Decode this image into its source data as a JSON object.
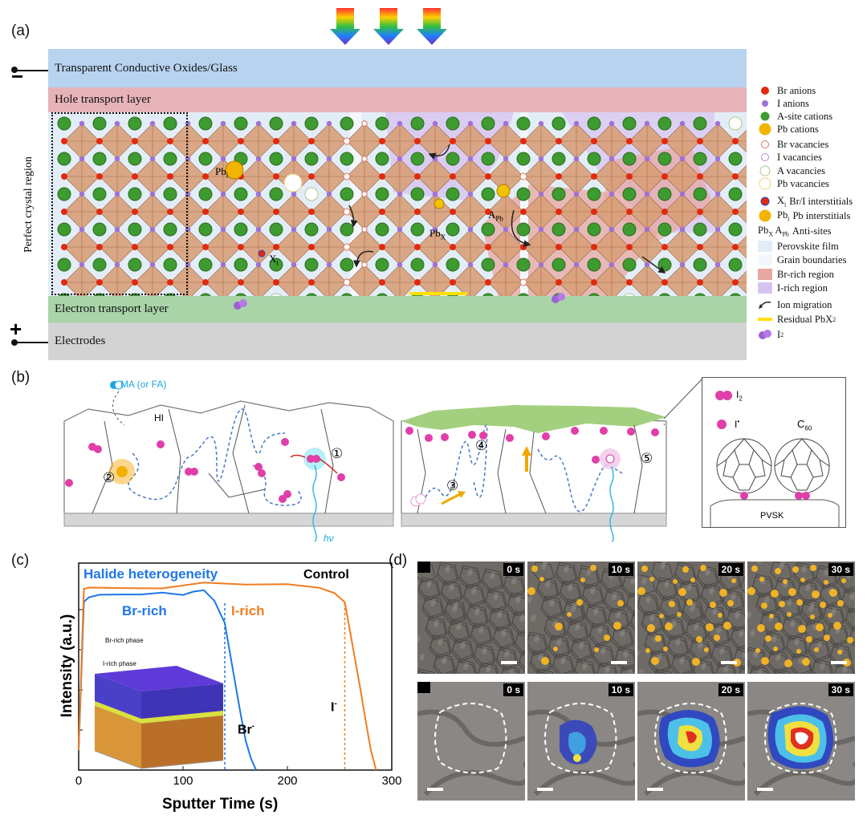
{
  "panel_a": {
    "label": "(a)",
    "side_label": "Perfect crystal region",
    "layers": {
      "tco": "Transparent Conductive Oxides/Glass",
      "htl": "Hole transport layer",
      "etl": "Electron transport layer",
      "electrodes": "Electrodes"
    },
    "polarity_top": "−",
    "polarity_bottom": "+",
    "inline_labels": {
      "pb": "Pb",
      "pb_sub": "i",
      "xi": "X",
      "xi_sub": "i",
      "apb": "A",
      "apb_sub": "Pb",
      "pbx": "Pb",
      "pbx_sub": "X"
    },
    "legend": [
      {
        "label": "Br anions",
        "icon": "red-dot"
      },
      {
        "label": "I anions",
        "icon": "purple-dot"
      },
      {
        "label": "A-site cations",
        "icon": "green-dot"
      },
      {
        "label": "Pb cations",
        "icon": "gold-dot"
      },
      {
        "label": "Br vacancies",
        "icon": "red-ring"
      },
      {
        "label": "I vacancies",
        "icon": "purple-ring"
      },
      {
        "label": "A vacancies",
        "icon": "green-ring"
      },
      {
        "label": "Pb vacancies",
        "icon": "gold-ring"
      },
      {
        "label": "Br/I interstitials",
        "icon": "xi-dot",
        "prefix": "X",
        "prefix_sub": "i"
      },
      {
        "label": "Pb interstitials",
        "icon": "pbi-dot",
        "prefix": "Pb",
        "prefix_sub": "i"
      },
      {
        "label": "Anti-sites",
        "icon": "none",
        "prefix": "Pb",
        "prefix_sub": "X",
        "prefix2": "A",
        "prefix2_sub": "Pb"
      },
      {
        "label": "Perovskite film",
        "icon": "swatch-blue"
      },
      {
        "label": "Grain boundaries",
        "icon": "swatch-white"
      },
      {
        "label": "Br-rich region",
        "icon": "swatch-red"
      },
      {
        "label": "I-rich region",
        "icon": "swatch-purple"
      },
      {
        "label": "Ion migration",
        "icon": "arrow"
      },
      {
        "label": "Residual PbX",
        "icon": "yellow-line",
        "sub": "2"
      },
      {
        "label": "I",
        "icon": "i2-dot",
        "sub": "2"
      }
    ]
  },
  "panel_b": {
    "label": "(b)",
    "ma_label": "MA (or FA)",
    "hi_label": "HI",
    "hv_label": "hν",
    "steps": [
      "①",
      "②",
      "③",
      "④",
      "⑤"
    ],
    "inset": {
      "i2": "I",
      "i2_sub": "2",
      "i_radical": "I",
      "i_radical_sup": "•",
      "c60": "C",
      "c60_sub": "60",
      "pvsk": "PVSK"
    }
  },
  "panel_c": {
    "label": "(c)",
    "inset_top": "Br-rich phase",
    "inset_bottom": "I-rich phase",
    "labels": {
      "halide_heterogeneity": "Halide heterogeneity",
      "control": "Control",
      "br_rich": "Br-rich",
      "i_rich": "I-rich",
      "i_minus": "I",
      "br_minus": "Br"
    },
    "colors": {
      "blue": "#1f77e8",
      "orange": "#f07c1e"
    },
    "chart_data": {
      "type": "line",
      "xlabel": "Sputter Time (s)",
      "ylabel": "Intensity (a.u.)",
      "xlim": [
        0,
        300
      ],
      "xticks": [
        "0",
        "100",
        "200",
        "300"
      ],
      "series": [
        {
          "name": "Halide heterogeneity",
          "x": [
            0,
            5,
            10,
            20,
            40,
            60,
            80,
            100,
            110,
            120,
            130,
            140,
            145,
            150,
            155,
            160,
            165,
            170
          ],
          "y": [
            0.1,
            0.85,
            0.87,
            0.88,
            0.88,
            0.88,
            0.89,
            0.88,
            0.9,
            0.91,
            0.86,
            0.75,
            0.6,
            0.45,
            0.3,
            0.15,
            0.06,
            0.0
          ]
        },
        {
          "name": "Control",
          "x": [
            0,
            5,
            10,
            40,
            80,
            120,
            160,
            200,
            230,
            245,
            255,
            260,
            265,
            270,
            275,
            280,
            285
          ],
          "y": [
            0.1,
            0.92,
            0.93,
            0.93,
            0.93,
            0.96,
            0.95,
            0.95,
            0.93,
            0.9,
            0.85,
            0.7,
            0.55,
            0.4,
            0.25,
            0.1,
            0.0
          ]
        }
      ],
      "annotations": [
        {
          "x": 140,
          "type": "dashed-vline",
          "color": "blue"
        },
        {
          "x": 255,
          "type": "dashed-vline",
          "color": "orange"
        }
      ]
    }
  },
  "panel_d": {
    "label": "(d)",
    "times": [
      "0 s",
      "10 s",
      "20 s",
      "30 s"
    ]
  }
}
